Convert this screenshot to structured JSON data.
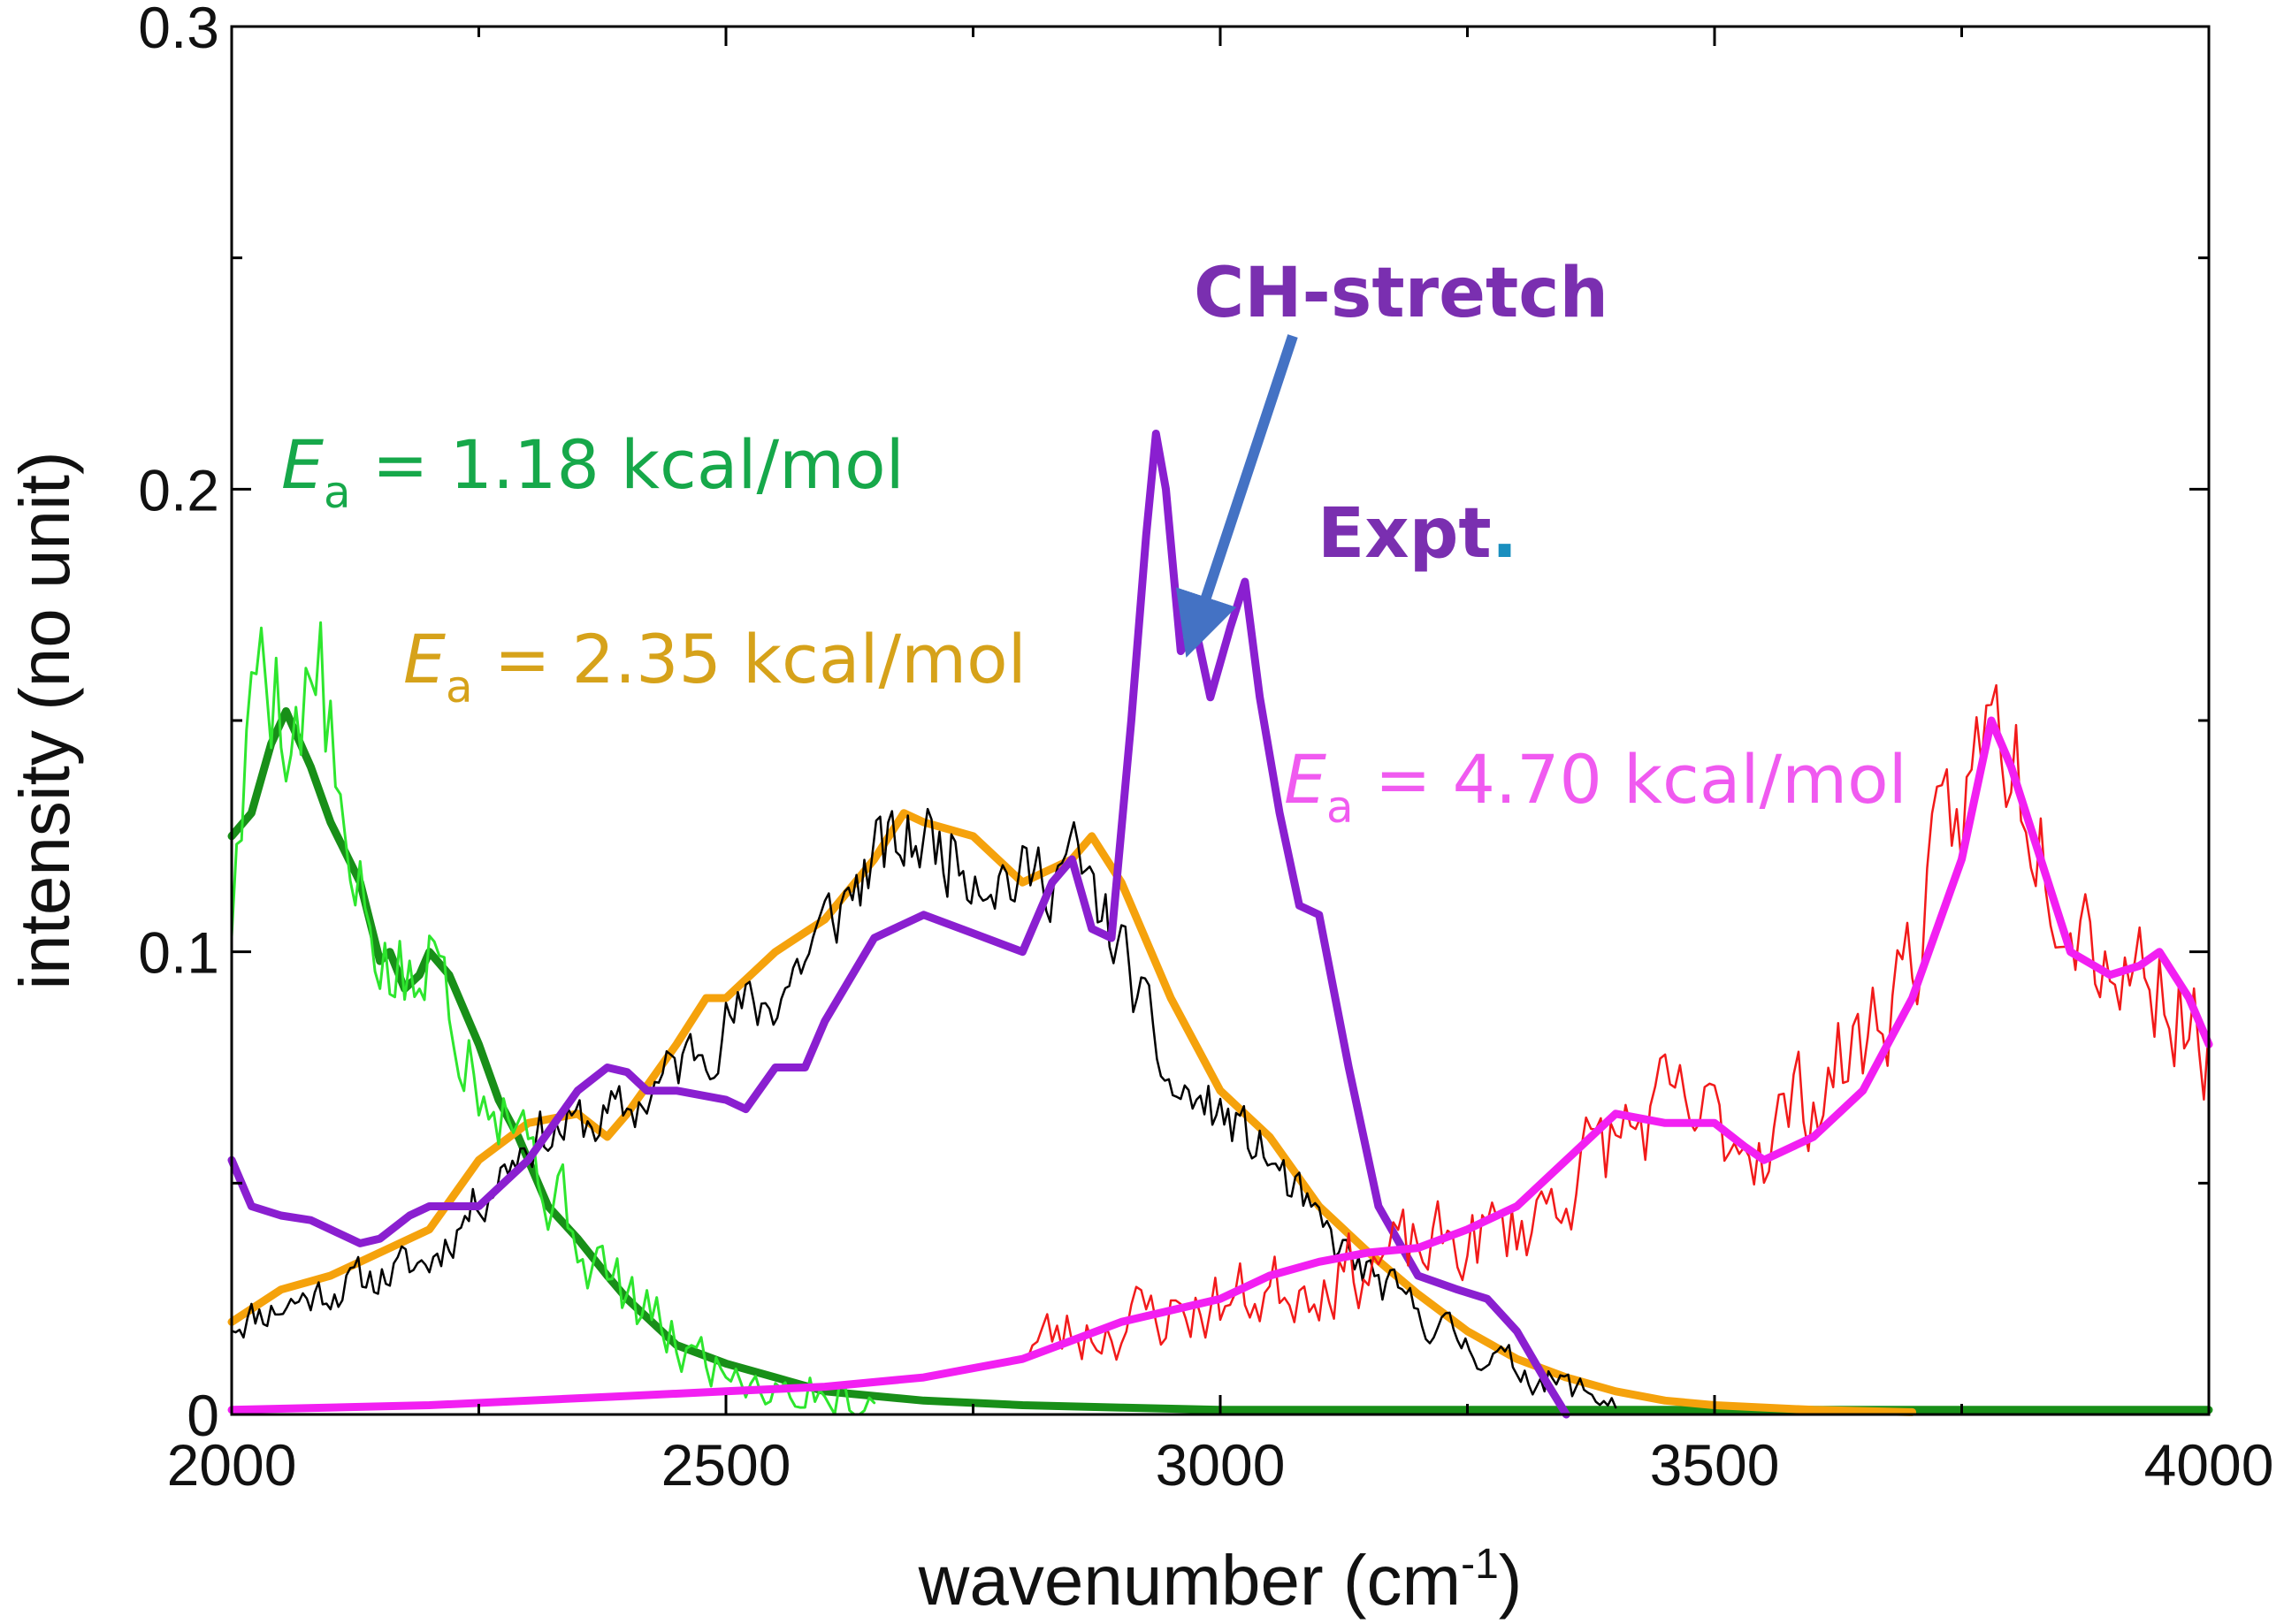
{
  "colors": {
    "green_dark": "#188f18",
    "green_light": "#2ee62e",
    "orange": "#f5a20c",
    "black": "#000000",
    "purple": "#8a1fd0",
    "magenta": "#f21ff2",
    "red": "#f21a1a",
    "arrow": "#4472c4",
    "label_green": "#16a84a",
    "label_orange": "#d6a21a",
    "label_magenta": "#f05af0",
    "label_purple": "#7a2fb0",
    "dot_teal": "#1a8fbf"
  },
  "chart_data": {
    "type": "line",
    "title": "",
    "xlabel": "wavenumber (cm",
    "xlabel_sup": "-1",
    "xlabel_close": ")",
    "ylabel": "intensity (no unit)",
    "xlim": [
      2000,
      4000
    ],
    "ylim": [
      0,
      0.3
    ],
    "xticks": [
      2000,
      2500,
      3000,
      3500,
      4000
    ],
    "xtick_labels": [
      "2000",
      "2500",
      "3000",
      "3500",
      "4000"
    ],
    "yticks": [
      0,
      0.1,
      0.2,
      0.3
    ],
    "ytick_labels": [
      "0",
      "0.1",
      "0.2",
      "0.3"
    ],
    "grid": false,
    "series": [
      {
        "name": "Ea = 1.18 kcal/mol (smoothed)",
        "color_key": "green_dark",
        "width": 9,
        "x": [
          2000,
          2020,
          2040,
          2055,
          2080,
          2100,
          2130,
          2150,
          2160,
          2175,
          2190,
          2200,
          2220,
          2250,
          2270,
          2290,
          2320,
          2350,
          2380,
          2400,
          2450,
          2500,
          2550,
          2600,
          2700,
          2800,
          2900,
          3000,
          3200,
          3500,
          4000
        ],
        "values": [
          0.125,
          0.13,
          0.145,
          0.152,
          0.14,
          0.128,
          0.115,
          0.098,
          0.1,
          0.092,
          0.095,
          0.1,
          0.095,
          0.08,
          0.068,
          0.06,
          0.045,
          0.038,
          0.03,
          0.025,
          0.015,
          0.011,
          0.008,
          0.005,
          0.003,
          0.002,
          0.0015,
          0.001,
          0.001,
          0.001,
          0.001
        ]
      },
      {
        "name": "Ea = 2.35 kcal/mol (smoothed)",
        "color_key": "orange",
        "width": 9,
        "x": [
          2000,
          2050,
          2100,
          2150,
          2200,
          2250,
          2300,
          2350,
          2380,
          2400,
          2450,
          2480,
          2500,
          2550,
          2600,
          2650,
          2680,
          2700,
          2750,
          2800,
          2850,
          2870,
          2900,
          2950,
          3000,
          3050,
          3100,
          3150,
          3200,
          3250,
          3300,
          3350,
          3400,
          3450,
          3500,
          3600,
          3700
        ],
        "values": [
          0.02,
          0.027,
          0.03,
          0.035,
          0.04,
          0.055,
          0.063,
          0.065,
          0.06,
          0.065,
          0.08,
          0.09,
          0.09,
          0.1,
          0.107,
          0.12,
          0.13,
          0.128,
          0.125,
          0.115,
          0.12,
          0.125,
          0.115,
          0.09,
          0.07,
          0.06,
          0.045,
          0.035,
          0.026,
          0.018,
          0.012,
          0.008,
          0.005,
          0.003,
          0.002,
          0.001,
          0.0005
        ]
      },
      {
        "name": "Ea = 2.35 kcal/mol (raw)",
        "color_key": "black",
        "width": 2.5,
        "noise": 0.013,
        "noise_step": 4,
        "seed": 11,
        "x": [
          2000,
          2100,
          2200,
          2300,
          2400,
          2450,
          2500,
          2550,
          2600,
          2650,
          2700,
          2750,
          2800,
          2850,
          2900,
          2950,
          3000,
          3050,
          3100,
          3150,
          3200,
          3250,
          3300,
          3350,
          3400
        ],
        "values": [
          0.02,
          0.027,
          0.033,
          0.06,
          0.065,
          0.075,
          0.085,
          0.09,
          0.105,
          0.12,
          0.125,
          0.12,
          0.115,
          0.12,
          0.1,
          0.07,
          0.065,
          0.055,
          0.04,
          0.03,
          0.022,
          0.015,
          0.01,
          0.006,
          0.003
        ],
        "x_end": 3400
      },
      {
        "name": "Ea = 1.18 kcal/mol (raw)",
        "color_key": "green_light",
        "width": 3,
        "noise": 0.022,
        "noise_step": 5,
        "seed": 5,
        "x": [
          2000,
          2030,
          2060,
          2090,
          2120,
          2150,
          2180,
          2210,
          2250,
          2280,
          2320,
          2360,
          2400,
          2450,
          2500,
          2550,
          2650
        ],
        "values": [
          0.11,
          0.17,
          0.15,
          0.16,
          0.11,
          0.1,
          0.09,
          0.1,
          0.075,
          0.07,
          0.05,
          0.035,
          0.025,
          0.015,
          0.01,
          0.007,
          0.003
        ],
        "x_end": 2650
      },
      {
        "name": "Expt.",
        "color_key": "purple",
        "width": 9,
        "x": [
          2000,
          2020,
          2050,
          2080,
          2100,
          2130,
          2150,
          2180,
          2200,
          2250,
          2300,
          2350,
          2380,
          2400,
          2420,
          2450,
          2500,
          2520,
          2550,
          2580,
          2600,
          2650,
          2700,
          2750,
          2800,
          2830,
          2850,
          2870,
          2890,
          2910,
          2925,
          2935,
          2945,
          2960,
          2975,
          2990,
          3010,
          3025,
          3040,
          3060,
          3080,
          3100,
          3130,
          3160,
          3200,
          3240,
          3270,
          3300,
          3330,
          3350
        ],
        "values": [
          0.055,
          0.045,
          0.043,
          0.042,
          0.04,
          0.037,
          0.038,
          0.043,
          0.045,
          0.045,
          0.055,
          0.07,
          0.075,
          0.074,
          0.07,
          0.07,
          0.068,
          0.066,
          0.075,
          0.075,
          0.085,
          0.103,
          0.108,
          0.104,
          0.1,
          0.115,
          0.12,
          0.105,
          0.103,
          0.15,
          0.19,
          0.212,
          0.2,
          0.165,
          0.17,
          0.155,
          0.17,
          0.18,
          0.155,
          0.13,
          0.11,
          0.108,
          0.075,
          0.045,
          0.03,
          0.027,
          0.025,
          0.018,
          0.007,
          0.0
        ]
      },
      {
        "name": "Ea = 4.70 kcal/mol (raw)",
        "color_key": "red",
        "width": 2.5,
        "noise": 0.024,
        "noise_step": 5,
        "seed": 23,
        "x_start": 2800,
        "x": [
          2800,
          2900,
          3000,
          3100,
          3200,
          3300,
          3400,
          3450,
          3500,
          3550,
          3600,
          3650,
          3700,
          3750,
          3780,
          3800,
          3850,
          3900,
          3950,
          4000
        ],
        "values": [
          0.015,
          0.02,
          0.024,
          0.03,
          0.035,
          0.04,
          0.06,
          0.065,
          0.062,
          0.06,
          0.07,
          0.08,
          0.1,
          0.13,
          0.15,
          0.145,
          0.12,
          0.1,
          0.095,
          0.08
        ]
      },
      {
        "name": "Ea = 4.70 kcal/mol (smoothed)",
        "color_key": "magenta",
        "width": 9,
        "x": [
          2000,
          2200,
          2400,
          2500,
          2600,
          2700,
          2800,
          2850,
          2900,
          3000,
          3050,
          3100,
          3150,
          3200,
          3250,
          3300,
          3350,
          3400,
          3450,
          3500,
          3530,
          3550,
          3600,
          3650,
          3700,
          3750,
          3780,
          3800,
          3830,
          3860,
          3900,
          3930,
          3950,
          3980,
          4000
        ],
        "values": [
          0.001,
          0.002,
          0.004,
          0.005,
          0.006,
          0.008,
          0.012,
          0.016,
          0.02,
          0.025,
          0.03,
          0.033,
          0.035,
          0.036,
          0.04,
          0.045,
          0.055,
          0.065,
          0.063,
          0.063,
          0.058,
          0.055,
          0.06,
          0.07,
          0.09,
          0.12,
          0.15,
          0.14,
          0.12,
          0.1,
          0.095,
          0.097,
          0.1,
          0.09,
          0.08
        ]
      }
    ],
    "annotations": [
      {
        "key": "ea1",
        "label_main": "E",
        "label_sub": "a",
        "label_rest": " = 1.18 kcal/mol",
        "color_key": "label_green"
      },
      {
        "key": "ea2",
        "label_main": "E",
        "label_sub": "a",
        "label_rest": " = 2.35 kcal/mol",
        "color_key": "label_orange"
      },
      {
        "key": "ea3",
        "label_main": "E",
        "label_sub": "a",
        "label_rest": " = 4.70 kcal/mol",
        "color_key": "label_magenta"
      },
      {
        "key": "ch",
        "label": "CH-stretch",
        "color_key": "label_purple"
      },
      {
        "key": "expt",
        "label": "Expt",
        "label_dot": ".",
        "color_key": "label_purple"
      }
    ],
    "arrow": {
      "from_label": "CH-stretch",
      "points_to": {
        "x": 2960,
        "y": 0.162
      }
    }
  }
}
